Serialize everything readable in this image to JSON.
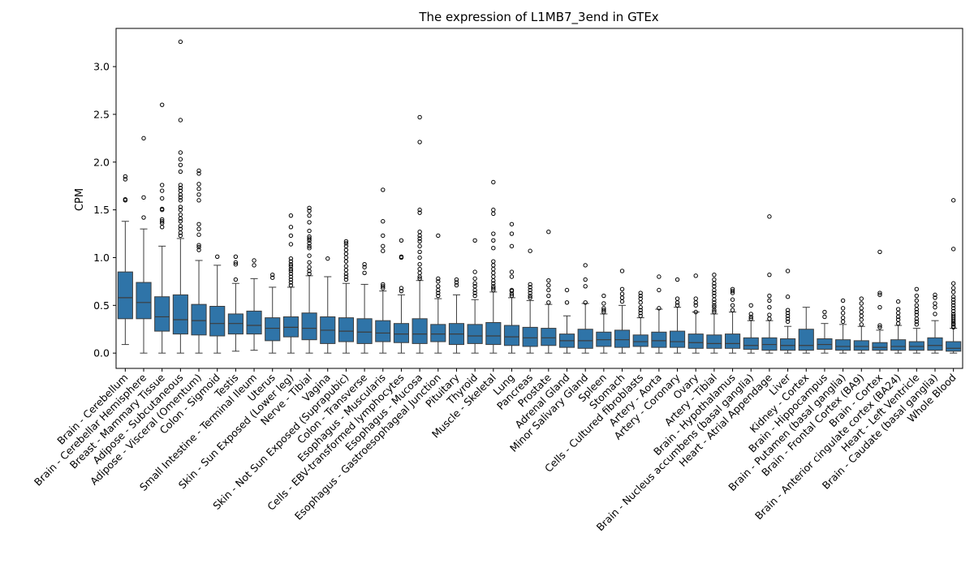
{
  "chart_data": {
    "type": "box",
    "title": "The expression of L1MB7_3end in GTEx",
    "xlabel": "",
    "ylabel": "CPM",
    "ylim": [
      -0.16,
      3.4
    ],
    "yticks": [
      0.0,
      0.5,
      1.0,
      1.5,
      2.0,
      2.5,
      3.0
    ],
    "ytick_labels": [
      "0.0",
      "0.5",
      "1.0",
      "1.5",
      "2.0",
      "2.5",
      "3.0"
    ],
    "grid": false,
    "legend": "none",
    "box_color": "#2f74a8",
    "categories": [
      {
        "name": "Brain - Cerebellum",
        "q1": 0.36,
        "median": 0.58,
        "q3": 0.85,
        "wl": 0.09,
        "wh": 1.38,
        "outliers": [
          1.6,
          1.61,
          1.82,
          1.85
        ]
      },
      {
        "name": "Brain - Cerebellar Hemisphere",
        "q1": 0.36,
        "median": 0.53,
        "q3": 0.74,
        "wl": 0.0,
        "wh": 1.3,
        "outliers": [
          1.42,
          1.63,
          2.25
        ]
      },
      {
        "name": "Breast - Mammary Tissue",
        "q1": 0.23,
        "median": 0.38,
        "q3": 0.59,
        "wl": 0.0,
        "wh": 1.12,
        "outliers": [
          1.32,
          1.36,
          1.38,
          1.4,
          1.5,
          1.51,
          1.62,
          1.7,
          1.76,
          2.6
        ]
      },
      {
        "name": "Adipose - Subcutaneous",
        "q1": 0.2,
        "median": 0.35,
        "q3": 0.61,
        "wl": 0.0,
        "wh": 1.2,
        "outliers": [
          1.23,
          1.26,
          1.3,
          1.33,
          1.38,
          1.41,
          1.45,
          1.5,
          1.53,
          1.6,
          1.63,
          1.66,
          1.7,
          1.73,
          1.76,
          1.9,
          1.97,
          2.03,
          2.1,
          2.44,
          3.26
        ]
      },
      {
        "name": "Adipose - Visceral (Omentum)",
        "q1": 0.19,
        "median": 0.34,
        "q3": 0.51,
        "wl": 0.0,
        "wh": 0.97,
        "outliers": [
          1.08,
          1.11,
          1.13,
          1.24,
          1.3,
          1.35,
          1.6,
          1.66,
          1.72,
          1.77,
          1.88,
          1.91
        ]
      },
      {
        "name": "Colon - Sigmoid",
        "q1": 0.18,
        "median": 0.31,
        "q3": 0.49,
        "wl": 0.0,
        "wh": 0.92,
        "outliers": [
          1.01
        ]
      },
      {
        "name": "Testis",
        "q1": 0.2,
        "median": 0.31,
        "q3": 0.41,
        "wl": 0.02,
        "wh": 0.73,
        "outliers": [
          0.77,
          0.93,
          0.95,
          1.01
        ]
      },
      {
        "name": "Small Intestine - Terminal Ileum",
        "q1": 0.2,
        "median": 0.29,
        "q3": 0.44,
        "wl": 0.03,
        "wh": 0.78,
        "outliers": [
          0.92,
          0.97
        ]
      },
      {
        "name": "Uterus",
        "q1": 0.13,
        "median": 0.26,
        "q3": 0.37,
        "wl": 0.0,
        "wh": 0.69,
        "outliers": [
          0.79,
          0.82
        ]
      },
      {
        "name": "Skin - Sun Exposed (Lower leg)",
        "q1": 0.17,
        "median": 0.27,
        "q3": 0.38,
        "wl": 0.0,
        "wh": 0.69,
        "outliers": [
          0.71,
          0.74,
          0.77,
          0.8,
          0.83,
          0.86,
          0.88,
          0.91,
          0.93,
          0.96,
          0.99,
          1.14,
          1.23,
          1.32,
          1.44
        ]
      },
      {
        "name": "Nerve - Tibial",
        "q1": 0.14,
        "median": 0.26,
        "q3": 0.42,
        "wl": 0.0,
        "wh": 0.81,
        "outliers": [
          0.83,
          0.86,
          0.9,
          0.95,
          1.02,
          1.1,
          1.12,
          1.15,
          1.18,
          1.2,
          1.22,
          1.28,
          1.37,
          1.44,
          1.49,
          1.52
        ]
      },
      {
        "name": "Vagina",
        "q1": 0.1,
        "median": 0.24,
        "q3": 0.38,
        "wl": 0.0,
        "wh": 0.8,
        "outliers": [
          0.99
        ]
      },
      {
        "name": "Skin - Not Sun Exposed (Suprapubic)",
        "q1": 0.12,
        "median": 0.23,
        "q3": 0.37,
        "wl": 0.0,
        "wh": 0.73,
        "outliers": [
          0.77,
          0.8,
          0.83,
          0.87,
          0.91,
          0.96,
          1.0,
          1.04,
          1.08,
          1.12,
          1.15,
          1.17
        ]
      },
      {
        "name": "Colon - Transverse",
        "q1": 0.1,
        "median": 0.22,
        "q3": 0.36,
        "wl": 0.0,
        "wh": 0.72,
        "outliers": [
          0.84,
          0.9,
          0.93
        ]
      },
      {
        "name": "Esophagus - Muscularis",
        "q1": 0.12,
        "median": 0.21,
        "q3": 0.34,
        "wl": 0.0,
        "wh": 0.65,
        "outliers": [
          0.68,
          0.7,
          0.72,
          1.07,
          1.12,
          1.23,
          1.38,
          1.71
        ]
      },
      {
        "name": "Cells - EBV-transformed lymphocytes",
        "q1": 0.11,
        "median": 0.2,
        "q3": 0.31,
        "wl": 0.0,
        "wh": 0.61,
        "outliers": [
          0.65,
          0.68,
          1.0,
          1.01,
          1.18
        ]
      },
      {
        "name": "Esophagus - Mucosa",
        "q1": 0.1,
        "median": 0.2,
        "q3": 0.36,
        "wl": 0.0,
        "wh": 0.76,
        "outliers": [
          0.78,
          0.8,
          0.84,
          0.88,
          0.93,
          1.0,
          1.06,
          1.12,
          1.17,
          1.2,
          1.23,
          1.27,
          1.47,
          1.5,
          2.21,
          2.47
        ]
      },
      {
        "name": "Esophagus - Gastroesophageal Junction",
        "q1": 0.12,
        "median": 0.2,
        "q3": 0.3,
        "wl": 0.0,
        "wh": 0.57,
        "outliers": [
          0.6,
          0.63,
          0.66,
          0.7,
          0.75,
          0.78,
          1.23
        ]
      },
      {
        "name": "Pituitary",
        "q1": 0.09,
        "median": 0.2,
        "q3": 0.31,
        "wl": 0.0,
        "wh": 0.61,
        "outliers": [
          0.71,
          0.74,
          0.77
        ]
      },
      {
        "name": "Thyroid",
        "q1": 0.1,
        "median": 0.18,
        "q3": 0.3,
        "wl": 0.0,
        "wh": 0.56,
        "outliers": [
          0.6,
          0.63,
          0.66,
          0.7,
          0.73,
          0.78,
          0.85,
          1.18
        ]
      },
      {
        "name": "Muscle - Skeletal",
        "q1": 0.09,
        "median": 0.18,
        "q3": 0.32,
        "wl": 0.0,
        "wh": 0.64,
        "outliers": [
          0.66,
          0.68,
          0.7,
          0.73,
          0.76,
          0.8,
          0.84,
          0.88,
          0.92,
          0.96,
          1.1,
          1.18,
          1.25,
          1.46,
          1.5,
          1.79
        ]
      },
      {
        "name": "Lung",
        "q1": 0.08,
        "median": 0.17,
        "q3": 0.29,
        "wl": 0.0,
        "wh": 0.58,
        "outliers": [
          0.6,
          0.62,
          0.65,
          0.66,
          0.8,
          0.85,
          1.12,
          1.25,
          1.35
        ]
      },
      {
        "name": "Pancreas",
        "q1": 0.07,
        "median": 0.16,
        "q3": 0.27,
        "wl": 0.0,
        "wh": 0.55,
        "outliers": [
          0.58,
          0.6,
          0.63,
          0.66,
          0.69,
          0.72,
          1.07
        ]
      },
      {
        "name": "Prostate",
        "q1": 0.08,
        "median": 0.16,
        "q3": 0.26,
        "wl": 0.0,
        "wh": 0.51,
        "outliers": [
          0.53,
          0.6,
          0.66,
          0.71,
          0.76,
          1.27
        ]
      },
      {
        "name": "Adrenal Gland",
        "q1": 0.06,
        "median": 0.13,
        "q3": 0.2,
        "wl": 0.0,
        "wh": 0.39,
        "outliers": [
          0.53,
          0.66
        ]
      },
      {
        "name": "Minor Salivary Gland",
        "q1": 0.05,
        "median": 0.13,
        "q3": 0.25,
        "wl": 0.0,
        "wh": 0.52,
        "outliers": [
          0.53,
          0.7,
          0.77,
          0.92
        ]
      },
      {
        "name": "Spleen",
        "q1": 0.07,
        "median": 0.14,
        "q3": 0.22,
        "wl": 0.0,
        "wh": 0.41,
        "outliers": [
          0.43,
          0.45,
          0.47,
          0.52,
          0.6
        ]
      },
      {
        "name": "Stomach",
        "q1": 0.06,
        "median": 0.14,
        "q3": 0.24,
        "wl": 0.0,
        "wh": 0.5,
        "outliers": [
          0.54,
          0.58,
          0.62,
          0.67,
          0.86
        ]
      },
      {
        "name": "Cells - Cultured fibroblasts",
        "q1": 0.07,
        "median": 0.12,
        "q3": 0.19,
        "wl": 0.0,
        "wh": 0.37,
        "outliers": [
          0.39,
          0.42,
          0.45,
          0.48,
          0.53,
          0.57,
          0.6,
          0.63
        ]
      },
      {
        "name": "Artery - Aorta",
        "q1": 0.06,
        "median": 0.13,
        "q3": 0.22,
        "wl": 0.0,
        "wh": 0.46,
        "outliers": [
          0.47,
          0.66,
          0.8
        ]
      },
      {
        "name": "Artery - Coronary",
        "q1": 0.06,
        "median": 0.12,
        "q3": 0.23,
        "wl": 0.0,
        "wh": 0.48,
        "outliers": [
          0.5,
          0.53,
          0.57,
          0.77
        ]
      },
      {
        "name": "Ovary",
        "q1": 0.05,
        "median": 0.11,
        "q3": 0.2,
        "wl": 0.0,
        "wh": 0.43,
        "outliers": [
          0.43,
          0.5,
          0.53,
          0.57,
          0.81
        ]
      },
      {
        "name": "Artery - Tibial",
        "q1": 0.05,
        "median": 0.1,
        "q3": 0.19,
        "wl": 0.0,
        "wh": 0.41,
        "outliers": [
          0.43,
          0.45,
          0.48,
          0.5,
          0.53,
          0.56,
          0.6,
          0.63,
          0.66,
          0.7,
          0.73,
          0.77,
          0.82
        ]
      },
      {
        "name": "Brain - Hypothalamus",
        "q1": 0.05,
        "median": 0.1,
        "q3": 0.2,
        "wl": 0.0,
        "wh": 0.43,
        "outliers": [
          0.45,
          0.5,
          0.56,
          0.63,
          0.65,
          0.67
        ]
      },
      {
        "name": "Brain - Nucleus accumbens (basal ganglia)",
        "q1": 0.04,
        "median": 0.08,
        "q3": 0.16,
        "wl": 0.0,
        "wh": 0.34,
        "outliers": [
          0.36,
          0.38,
          0.41,
          0.5
        ]
      },
      {
        "name": "Heart - Atrial Appendage",
        "q1": 0.03,
        "median": 0.09,
        "q3": 0.16,
        "wl": 0.0,
        "wh": 0.34,
        "outliers": [
          0.36,
          0.4,
          0.48,
          0.55,
          0.6,
          0.82,
          1.43
        ]
      },
      {
        "name": "Liver",
        "q1": 0.03,
        "median": 0.08,
        "q3": 0.15,
        "wl": 0.0,
        "wh": 0.28,
        "outliers": [
          0.33,
          0.36,
          0.39,
          0.42,
          0.45,
          0.59,
          0.86
        ]
      },
      {
        "name": "Kidney - Cortex",
        "q1": 0.03,
        "median": 0.08,
        "q3": 0.25,
        "wl": 0.0,
        "wh": 0.48,
        "outliers": []
      },
      {
        "name": "Brain - Hippocampus",
        "q1": 0.04,
        "median": 0.09,
        "q3": 0.15,
        "wl": 0.0,
        "wh": 0.31,
        "outliers": [
          0.38,
          0.43
        ]
      },
      {
        "name": "Brain - Putamen (basal ganglia)",
        "q1": 0.03,
        "median": 0.07,
        "q3": 0.14,
        "wl": 0.0,
        "wh": 0.3,
        "outliers": [
          0.33,
          0.37,
          0.42,
          0.47,
          0.55
        ]
      },
      {
        "name": "Brain - Frontal Cortex (BA9)",
        "q1": 0.03,
        "median": 0.07,
        "q3": 0.13,
        "wl": 0.0,
        "wh": 0.28,
        "outliers": [
          0.3,
          0.35,
          0.39,
          0.43,
          0.47,
          0.52,
          0.57
        ]
      },
      {
        "name": "Brain - Cortex",
        "q1": 0.03,
        "median": 0.06,
        "q3": 0.11,
        "wl": 0.0,
        "wh": 0.24,
        "outliers": [
          0.27,
          0.29,
          0.48,
          0.61,
          0.63,
          1.06
        ]
      },
      {
        "name": "Brain - Anterior cingulate cortex (BA24)",
        "q1": 0.03,
        "median": 0.07,
        "q3": 0.14,
        "wl": 0.0,
        "wh": 0.29,
        "outliers": [
          0.31,
          0.35,
          0.38,
          0.42,
          0.46,
          0.54
        ]
      },
      {
        "name": "Heart - Left Ventricle",
        "q1": 0.03,
        "median": 0.07,
        "q3": 0.12,
        "wl": 0.0,
        "wh": 0.26,
        "outliers": [
          0.3,
          0.33,
          0.36,
          0.4,
          0.43,
          0.46,
          0.5,
          0.55,
          0.6,
          0.67
        ]
      },
      {
        "name": "Brain - Caudate (basal ganglia)",
        "q1": 0.03,
        "median": 0.08,
        "q3": 0.16,
        "wl": 0.0,
        "wh": 0.34,
        "outliers": [
          0.41,
          0.48,
          0.52,
          0.58,
          0.61
        ]
      },
      {
        "name": "Whole Blood",
        "q1": 0.02,
        "median": 0.05,
        "q3": 0.12,
        "wl": 0.0,
        "wh": 0.26,
        "outliers": [
          0.27,
          0.28,
          0.3,
          0.31,
          0.33,
          0.35,
          0.37,
          0.39,
          0.41,
          0.44,
          0.47,
          0.5,
          0.53,
          0.56,
          0.59,
          0.64,
          0.68,
          0.73,
          1.09,
          1.6
        ]
      }
    ]
  }
}
